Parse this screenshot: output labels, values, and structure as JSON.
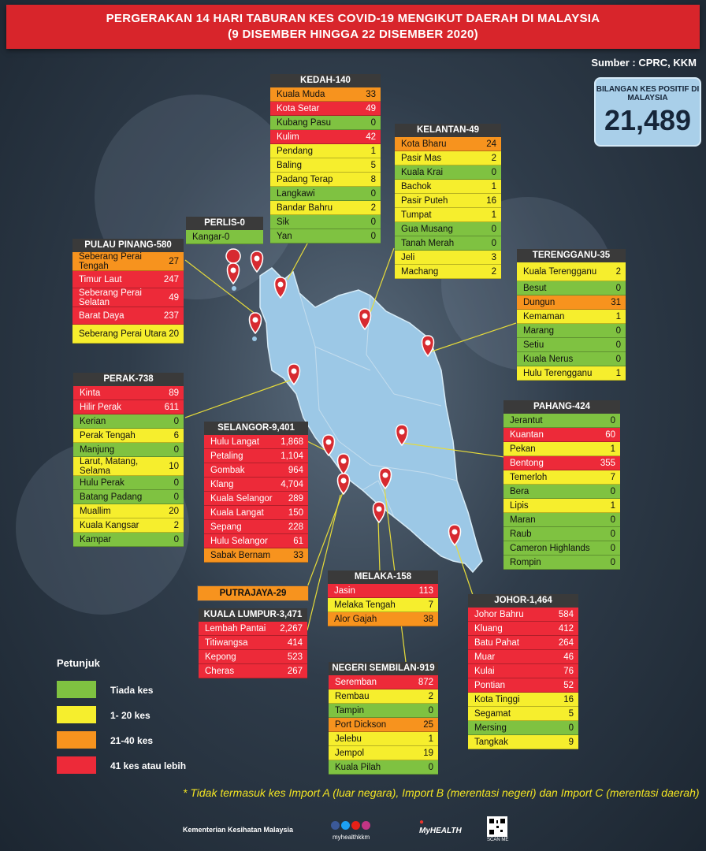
{
  "header": {
    "line1": "PERGERAKAN 14 HARI TABURAN KES COVID-19 MENGIKUT DAERAH DI MALAYSIA",
    "line2": "(9 DISEMBER HINGGA 22 DISEMBER 2020)"
  },
  "source": "Sumber : CPRC, KKM",
  "total": {
    "label": "BILANGAN KES POSITIF DI MALAYSIA",
    "value": "21,489"
  },
  "colors": {
    "green": "#7fc241",
    "yellow": "#f6ee2d",
    "orange": "#f7931e",
    "red": "#ed2a39",
    "map": "#9cc8e6"
  },
  "states": {
    "kedah": {
      "title": "KEDAH-140",
      "rows": [
        [
          "Kuala Muda",
          "33",
          "o"
        ],
        [
          "Kota Setar",
          "49",
          "r"
        ],
        [
          "Kubang Pasu",
          "0",
          "g"
        ],
        [
          "Kulim",
          "42",
          "r"
        ],
        [
          "Pendang",
          "1",
          "y"
        ],
        [
          "Baling",
          "5",
          "y"
        ],
        [
          "Padang Terap",
          "8",
          "y"
        ],
        [
          "Langkawi",
          "0",
          "g"
        ],
        [
          "Bandar Bahru",
          "2",
          "y"
        ],
        [
          "Sik",
          "0",
          "g"
        ],
        [
          "Yan",
          "0",
          "g"
        ]
      ]
    },
    "kelantan": {
      "title": "KELANTAN-49",
      "rows": [
        [
          "Kota Bharu",
          "24",
          "o"
        ],
        [
          "Pasir Mas",
          "2",
          "y"
        ],
        [
          "Kuala Krai",
          "0",
          "g"
        ],
        [
          "Bachok",
          "1",
          "y"
        ],
        [
          "Pasir Puteh",
          "16",
          "y"
        ],
        [
          "Tumpat",
          "1",
          "y"
        ],
        [
          "Gua Musang",
          "0",
          "g"
        ],
        [
          "Tanah Merah",
          "0",
          "g"
        ],
        [
          "Jeli",
          "3",
          "y"
        ],
        [
          "Machang",
          "2",
          "y"
        ]
      ]
    },
    "perlis": {
      "title": "PERLIS-0",
      "rows": [
        [
          "Kangar-0",
          "",
          "g"
        ]
      ]
    },
    "pulau_pinang": {
      "title": "PULAU PINANG-580",
      "rows": [
        [
          "Seberang Perai Tengah",
          "27",
          "o"
        ],
        [
          "Timur Laut",
          "247",
          "r"
        ],
        [
          "Seberang Perai Selatan",
          "49",
          "r"
        ],
        [
          "Barat Daya",
          "237",
          "r"
        ],
        [
          "Seberang Perai Utara",
          "20",
          "y"
        ]
      ]
    },
    "terengganu": {
      "title": "TERENGGANU-35",
      "rows": [
        [
          "Kuala Terengganu",
          "2",
          "y"
        ],
        [
          "Besut",
          "0",
          "g"
        ],
        [
          "Dungun",
          "31",
          "o"
        ],
        [
          "Kemaman",
          "1",
          "y"
        ],
        [
          "Marang",
          "0",
          "g"
        ],
        [
          "Setiu",
          "0",
          "g"
        ],
        [
          "Kuala Nerus",
          "0",
          "g"
        ],
        [
          "Hulu Terengganu",
          "1",
          "y"
        ]
      ]
    },
    "perak": {
      "title": "PERAK-738",
      "rows": [
        [
          "Kinta",
          "89",
          "r"
        ],
        [
          "Hilir Perak",
          "611",
          "r"
        ],
        [
          "Kerian",
          "0",
          "g"
        ],
        [
          "Perak Tengah",
          "6",
          "y"
        ],
        [
          "Manjung",
          "0",
          "g"
        ],
        [
          "Larut, Matang, Selama",
          "10",
          "y"
        ],
        [
          "Hulu Perak",
          "0",
          "g"
        ],
        [
          "Batang Padang",
          "0",
          "g"
        ],
        [
          "Muallim",
          "20",
          "y"
        ],
        [
          "Kuala Kangsar",
          "2",
          "y"
        ],
        [
          "Kampar",
          "0",
          "g"
        ]
      ]
    },
    "selangor": {
      "title": "SELANGOR-9,401",
      "rows": [
        [
          "Hulu Langat",
          "1,868",
          "r"
        ],
        [
          "Petaling",
          "1,104",
          "r"
        ],
        [
          "Gombak",
          "964",
          "r"
        ],
        [
          "Klang",
          "4,704",
          "r"
        ],
        [
          "Kuala Selangor",
          "289",
          "r"
        ],
        [
          "Kuala Langat",
          "150",
          "r"
        ],
        [
          "Sepang",
          "228",
          "r"
        ],
        [
          "Hulu Selangor",
          "61",
          "r"
        ],
        [
          "Sabak Bernam",
          "33",
          "o"
        ]
      ]
    },
    "pahang": {
      "title": "PAHANG-424",
      "rows": [
        [
          "Jerantut",
          "0",
          "g"
        ],
        [
          "Kuantan",
          "60",
          "r"
        ],
        [
          "Pekan",
          "1",
          "y"
        ],
        [
          "Bentong",
          "355",
          "r"
        ],
        [
          "Temerloh",
          "7",
          "y"
        ],
        [
          "Bera",
          "0",
          "g"
        ],
        [
          "Lipis",
          "1",
          "y"
        ],
        [
          "Maran",
          "0",
          "g"
        ],
        [
          "Raub",
          "0",
          "g"
        ],
        [
          "Cameron Highlands",
          "0",
          "g"
        ],
        [
          "Rompin",
          "0",
          "g"
        ]
      ]
    },
    "putrajaya": {
      "title": "PUTRAJAYA-29"
    },
    "melaka": {
      "title": "MELAKA-158",
      "rows": [
        [
          "Jasin",
          "113",
          "r"
        ],
        [
          "Melaka Tengah",
          "7",
          "y"
        ],
        [
          "Alor Gajah",
          "38",
          "o"
        ]
      ]
    },
    "kuala_lumpur": {
      "title": "KUALA LUMPUR-3,471",
      "rows": [
        [
          "Lembah Pantai",
          "2,267",
          "r"
        ],
        [
          "Titiwangsa",
          "414",
          "r"
        ],
        [
          "Kepong",
          "523",
          "r"
        ],
        [
          "Cheras",
          "267",
          "r"
        ]
      ]
    },
    "johor": {
      "title": "JOHOR-1,464",
      "rows": [
        [
          "Johor Bahru",
          "584",
          "r"
        ],
        [
          "Kluang",
          "412",
          "r"
        ],
        [
          "Batu Pahat",
          "264",
          "r"
        ],
        [
          "Muar",
          "46",
          "r"
        ],
        [
          "Kulai",
          "76",
          "r"
        ],
        [
          "Pontian",
          "52",
          "r"
        ],
        [
          "Kota Tinggi",
          "16",
          "y"
        ],
        [
          "Segamat",
          "5",
          "y"
        ],
        [
          "Mersing",
          "0",
          "g"
        ],
        [
          "Tangkak",
          "9",
          "y"
        ]
      ]
    },
    "negeri_sembilan": {
      "title": "NEGERI SEMBILAN-919",
      "rows": [
        [
          "Seremban",
          "872",
          "r"
        ],
        [
          "Rembau",
          "2",
          "y"
        ],
        [
          "Tampin",
          "0",
          "g"
        ],
        [
          "Port Dickson",
          "25",
          "o"
        ],
        [
          "Jelebu",
          "1",
          "y"
        ],
        [
          "Jempol",
          "19",
          "y"
        ],
        [
          "Kuala Pilah",
          "0",
          "g"
        ]
      ]
    }
  },
  "legend": {
    "title": "Petunjuk",
    "items": [
      "Tiada kes",
      "1- 20 kes",
      "21-40 kes",
      "41 kes atau lebih"
    ]
  },
  "footnote": "* Tidak termasuk kes Import A (luar negara),  Import B (merentasi negeri) dan Import C (merentasi daerah)",
  "footer": {
    "ministry": "Kementerian Kesihatan Malaysia",
    "handle": "myhealthkkm",
    "logo": "MyHEALTH",
    "scan": "SCAN ME"
  }
}
